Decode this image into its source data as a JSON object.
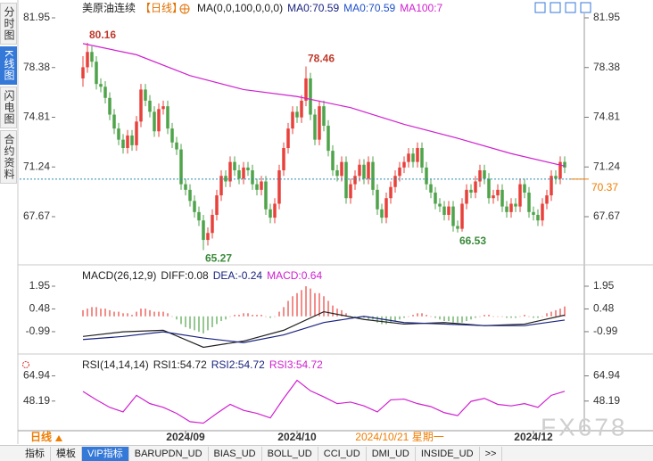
{
  "sidebar_tabs": [
    "分时图",
    "K线图",
    "闪电图",
    "合约资料"
  ],
  "period": "日线",
  "toolbar_tabs": [
    "指标",
    "模板",
    "VIP指标",
    "BARUPDN_UD",
    "BIAS_UD",
    "BOLL_UD",
    "CCI_UD",
    "DMI_UD",
    "INSIDE_UD",
    ">>"
  ],
  "watermark": "FX678",
  "chart_data": [
    {
      "type": "candlestick",
      "legend": [
        {
          "text": "美原油连续",
          "color": "#222222"
        },
        {
          "text": "【日线】",
          "color": "#e07000"
        },
        {
          "text": "MA(0,0,100,0,0,0)",
          "color": "#222222"
        },
        {
          "text": "MA0:70.59",
          "color": "#1a237e"
        },
        {
          "text": "MA0:70.59",
          "color": "#1e50c8"
        },
        {
          "text": "MA100:7",
          "color": "#d020d0"
        }
      ],
      "ylim": [
        64.66,
        82.27
      ],
      "yticks": [
        81.95,
        78.38,
        74.81,
        71.24,
        67.67
      ],
      "up_color": "#e8413b",
      "down_color": "#4fa34a",
      "open": [
        77.6,
        78.4,
        79.5,
        78.8,
        77.2,
        77,
        76.2,
        75,
        74,
        73.2,
        72.6,
        73.5,
        72.8,
        74.5,
        76.8,
        76,
        75.2,
        73.8,
        75.4,
        75.6,
        74,
        73,
        72.5,
        70,
        69.6,
        68.8,
        68,
        67.4,
        66,
        66.5,
        67.8,
        69.2,
        70.6,
        70.2,
        71.6,
        71,
        70.4,
        71.2,
        71,
        70,
        69.6,
        70.2,
        68.2,
        67.6,
        68.6,
        71,
        72.6,
        74,
        75.2,
        74.8,
        76,
        77.6,
        75,
        73.2,
        75.6,
        74.2,
        72.4,
        71,
        70.6,
        71.6,
        69,
        70,
        70.6,
        71.4,
        70.4,
        71.6,
        69.6,
        68.2,
        67.6,
        69,
        69.8,
        70.6,
        71.2,
        71.6,
        72.2,
        71.6,
        72.6,
        71.2,
        70,
        69.4,
        68.6,
        68.4,
        67.8,
        68.4,
        67,
        66.8,
        68.6,
        69.6,
        69.4,
        70.2,
        71,
        70.4,
        69,
        69.2,
        69.6,
        68.4,
        68,
        68.6,
        68.4,
        70,
        69.4,
        68,
        67.8,
        67.4,
        68.6,
        69.2,
        70.6,
        70.4,
        71.6
      ],
      "high": [
        79.2,
        80.16,
        79.9,
        79.2,
        77.6,
        77.4,
        76.6,
        75.4,
        74.4,
        73.6,
        73.9,
        73.9,
        74.9,
        77.2,
        77.2,
        76.4,
        75.6,
        75.8,
        76,
        76,
        74.4,
        73.4,
        72.9,
        70.4,
        70,
        69.2,
        68.4,
        67.8,
        66.9,
        68.2,
        69.6,
        71,
        71,
        72,
        72,
        71.4,
        71.6,
        71.6,
        71.4,
        70.4,
        70.6,
        70.6,
        68.6,
        69,
        71.4,
        73,
        74.4,
        75.6,
        75.6,
        76.4,
        78.46,
        78,
        75.4,
        76,
        76,
        74.6,
        72.8,
        71.4,
        72,
        72,
        70.4,
        71,
        71.8,
        71.8,
        72,
        72,
        70,
        68.6,
        69.4,
        70.2,
        71,
        71.6,
        72,
        72.6,
        72.6,
        73,
        73,
        71.6,
        70.4,
        69.8,
        69,
        68.8,
        68.8,
        68.8,
        67.4,
        69,
        70,
        70,
        70.6,
        71.4,
        71.4,
        70.8,
        69.6,
        70,
        70,
        68.8,
        69,
        69,
        70.4,
        70.4,
        69.8,
        68.4,
        68.2,
        69,
        69.6,
        71,
        71,
        72,
        72
      ],
      "low": [
        77,
        78,
        78.4,
        76.8,
        76.6,
        75.8,
        74.6,
        73.6,
        72.8,
        72.2,
        72.2,
        72.4,
        72.4,
        74.1,
        75.6,
        74.8,
        73.4,
        73.4,
        75,
        73.6,
        72.6,
        72.1,
        69.6,
        69.2,
        68.4,
        67.6,
        67,
        65.27,
        65.6,
        66.1,
        67.4,
        68.8,
        69.8,
        69.8,
        70.6,
        70,
        70,
        70.6,
        69.6,
        69.2,
        69.2,
        67.8,
        67.2,
        67.2,
        68.2,
        70.6,
        72.2,
        73.6,
        74.4,
        74.4,
        75.6,
        74.6,
        72.8,
        72.8,
        73.8,
        72,
        70.6,
        70.2,
        70.2,
        68.6,
        68.6,
        69.6,
        70.2,
        70,
        70,
        69.2,
        67.8,
        67.2,
        67.2,
        68.6,
        69.4,
        70.2,
        70.8,
        71.2,
        71.2,
        71.2,
        70.8,
        69.6,
        69,
        68.2,
        68,
        67.4,
        67.4,
        66.6,
        66.53,
        66.6,
        68.2,
        69,
        69,
        69.8,
        70,
        68.6,
        68.6,
        68.8,
        68,
        67.6,
        67.6,
        68,
        68,
        69,
        67.6,
        67.4,
        67,
        67,
        68.2,
        68.8,
        70,
        70,
        70.8
      ],
      "close": [
        78.4,
        79.5,
        78.8,
        77.2,
        77,
        76.2,
        75,
        74,
        73.2,
        72.6,
        73.5,
        72.8,
        74.5,
        76.8,
        76,
        75.2,
        73.8,
        75.4,
        75.6,
        74,
        73,
        72.5,
        70,
        69.6,
        68.8,
        68,
        67.4,
        66,
        66.5,
        67.8,
        69.2,
        70.6,
        70.2,
        71.6,
        71,
        70.4,
        71.2,
        71,
        70,
        69.6,
        70.2,
        68.2,
        67.6,
        68.6,
        71,
        72.6,
        74,
        75.2,
        74.8,
        76,
        77.6,
        75,
        73.2,
        75.6,
        74.2,
        72.4,
        71,
        70.6,
        71.6,
        69,
        70,
        70.6,
        71.4,
        70.4,
        71.6,
        69.6,
        68.2,
        67.6,
        69,
        69.8,
        70.6,
        71.2,
        71.6,
        72.2,
        71.6,
        72.6,
        71.2,
        70,
        69.4,
        68.6,
        68.4,
        67.8,
        68.4,
        67,
        66.8,
        68.6,
        69.6,
        69.4,
        70.2,
        71,
        70.4,
        69,
        69.2,
        69.6,
        68.4,
        68,
        68.6,
        68.4,
        70,
        69.4,
        68,
        67.8,
        67.4,
        68.6,
        69.2,
        70.6,
        70.4,
        71.6,
        71.2
      ],
      "series": [
        {
          "color": "#d020d0",
          "x": [
            0,
            12,
            24,
            36,
            48,
            60,
            72,
            84,
            96,
            108
          ],
          "values": [
            80.1,
            79.3,
            77.8,
            76.8,
            76.3,
            75.5,
            74.3,
            73.3,
            72.2,
            71.3
          ]
        }
      ],
      "annotations": [
        {
          "x": 1,
          "value": 80.16
        },
        {
          "x": 50,
          "value": 78.46
        },
        {
          "x": 27,
          "value": 65.27
        },
        {
          "x": 84,
          "value": 66.53
        }
      ],
      "last_price": 70.37,
      "last_price_color": "#2a8ab0",
      "last_price_label_color": "#f07c00"
    },
    {
      "type": "macd",
      "legend": [
        {
          "text": "MACD(26,12,9)",
          "color": "#222222"
        },
        {
          "text": "DIFF:0.08",
          "color": "#222222"
        },
        {
          "text": "DEA:-0.24",
          "color": "#1a237e"
        },
        {
          "text": "MACD:0.64",
          "color": "#d020d0"
        }
      ],
      "ylim": [
        -2.32,
        3.16
      ],
      "yticks": [
        1.95,
        0.48,
        -0.99
      ],
      "up_color": "#e8413b",
      "down_color": "#4fa34a",
      "values": [
        0.4,
        0.5,
        0.6,
        0.6,
        0.5,
        0.5,
        0.4,
        0.3,
        0.3,
        0.2,
        0.2,
        0.1,
        0.3,
        0.5,
        0.5,
        0.4,
        0.3,
        0.3,
        0.3,
        0.2,
        0,
        -0.2,
        -0.5,
        -0.7,
        -0.8,
        -0.9,
        -1,
        -1.1,
        -0.9,
        -0.7,
        -0.5,
        -0.3,
        -0.2,
        0,
        0.1,
        0.1,
        0.2,
        0.2,
        0.1,
        0.1,
        0.1,
        0,
        -0.1,
        0,
        0.3,
        0.6,
        1,
        1.3,
        1.5,
        1.7,
        1.95,
        1.8,
        1.5,
        1.5,
        1.3,
        1,
        0.7,
        0.5,
        0.4,
        0.2,
        0,
        -0.1,
        -0.1,
        -0.1,
        -0.2,
        -0.2,
        -0.4,
        -0.5,
        -0.5,
        -0.4,
        -0.3,
        -0.2,
        -0.1,
        0,
        0.1,
        0.2,
        0.2,
        0.1,
        0,
        -0.1,
        -0.2,
        -0.3,
        -0.3,
        -0.4,
        -0.4,
        -0.4,
        -0.3,
        -0.2,
        -0.1,
        0,
        0.1,
        0.1,
        0,
        0,
        0,
        -0.1,
        -0.1,
        -0.1,
        0,
        0.1,
        0,
        -0.1,
        -0.1,
        0,
        0.2,
        0.3,
        0.4,
        0.5,
        0.64
      ],
      "series": [
        {
          "color": "#222222",
          "x": [
            0,
            9,
            18,
            27,
            36,
            45,
            54,
            63,
            72,
            81,
            90,
            99,
            108
          ],
          "values": [
            -1.3,
            -1,
            -0.9,
            -2,
            -1.6,
            -0.9,
            0.3,
            -0.2,
            -0.5,
            -0.4,
            -0.6,
            -0.5,
            0.08
          ]
        },
        {
          "color": "#1a237e",
          "x": [
            0,
            9,
            18,
            27,
            36,
            45,
            54,
            63,
            72,
            81,
            90,
            99,
            108
          ],
          "values": [
            -1.5,
            -1.3,
            -1,
            -1.4,
            -1.7,
            -1.2,
            -0.4,
            0,
            -0.4,
            -0.5,
            -0.6,
            -0.6,
            -0.24
          ]
        }
      ]
    },
    {
      "type": "line",
      "legend": [
        {
          "text": "RSI(14,14,14)",
          "color": "#222222"
        },
        {
          "text": "RSI1:54.72",
          "color": "#222222"
        },
        {
          "text": "RSI2:54.72",
          "color": "#1a237e"
        },
        {
          "text": "RSI3:54.72",
          "color": "#d020d0"
        }
      ],
      "ylim": [
        28.5,
        77.7
      ],
      "yticks": [
        64.94,
        48.19
      ],
      "series": [
        {
          "color": "#d020d0",
          "x": [
            0,
            3,
            6,
            9,
            12,
            15,
            18,
            21,
            24,
            27,
            30,
            33,
            36,
            39,
            42,
            45,
            48,
            51,
            54,
            57,
            60,
            63,
            66,
            69,
            72,
            75,
            78,
            81,
            84,
            87,
            90,
            93,
            96,
            99,
            102,
            105,
            108
          ],
          "values": [
            54.6,
            49,
            44,
            41,
            52,
            46.5,
            44,
            40,
            34.5,
            33.5,
            40,
            46,
            42,
            40,
            37,
            50,
            62,
            55,
            51,
            46.5,
            47.5,
            45,
            41,
            49,
            49.5,
            46.5,
            44.5,
            40.5,
            38.5,
            48,
            50,
            46,
            45,
            46.5,
            44,
            52,
            54.7
          ]
        }
      ],
      "xticks": [
        {
          "value": 23,
          "label": "2024/09"
        },
        {
          "value": 48,
          "label": "2024/10"
        },
        {
          "value": 101,
          "label": "2024/12"
        }
      ],
      "cursor": {
        "value": 71,
        "label": "2024/10/21 星期一"
      },
      "cursor_color": "#f07c00"
    }
  ]
}
